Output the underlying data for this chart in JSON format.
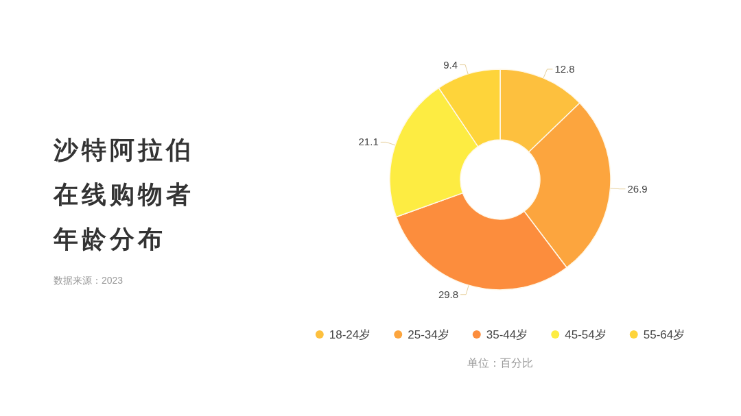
{
  "chart_data": {
    "type": "donut",
    "title": "沙特阿拉伯在线购物者年龄分布",
    "categories": [
      "18-24岁",
      "25-34岁",
      "35-44岁",
      "45-54岁",
      "55-64岁"
    ],
    "values": [
      12.8,
      26.9,
      29.8,
      21.1,
      9.4
    ],
    "colors": [
      "#fdc03e",
      "#fca53e",
      "#fc8d3d",
      "#fdec42",
      "#fed43a"
    ],
    "data_labels": true,
    "legend": "bottom",
    "annotations": [
      "数据来源：2023",
      "单位：百分比"
    ]
  }
}
